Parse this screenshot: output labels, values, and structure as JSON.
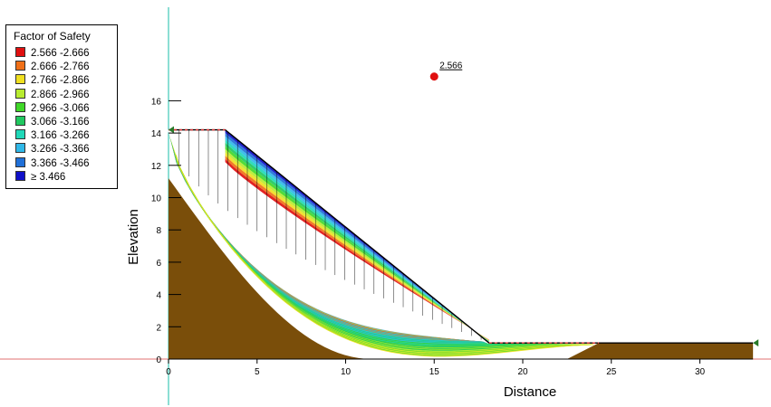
{
  "chart_data": {
    "type": "slope-stability",
    "xlabel": "Distance",
    "ylabel": "Elevation",
    "xlim": [
      0,
      33
    ],
    "ylim": [
      0,
      16
    ],
    "x_ticks": [
      "0",
      "5",
      "10",
      "15",
      "20",
      "25",
      "30"
    ],
    "y_ticks": [
      "0",
      "2",
      "4",
      "6",
      "8",
      "10",
      "12",
      "14",
      "16"
    ],
    "legend": {
      "title": "Factor of Safety",
      "entries": [
        {
          "label": "2.566 -2.666",
          "color": "#e01010"
        },
        {
          "label": "2.666 -2.766",
          "color": "#f07018"
        },
        {
          "label": "2.766 -2.866",
          "color": "#f0e020"
        },
        {
          "label": "2.866 -2.966",
          "color": "#b8ec30"
        },
        {
          "label": "2.966 -3.066",
          "color": "#40d828"
        },
        {
          "label": "3.066 -3.166",
          "color": "#20c860"
        },
        {
          "label": "3.166 -3.266",
          "color": "#20d8b8"
        },
        {
          "label": "3.266 -3.366",
          "color": "#30b8e8"
        },
        {
          "label": "3.366 -3.466",
          "color": "#2070d8"
        },
        {
          "label": "≥ 3.466",
          "color": "#1010c8"
        }
      ]
    },
    "critical_center": {
      "x": 15,
      "y": 17.5,
      "fos": "2.566"
    },
    "ground_surface": [
      [
        0,
        14.2
      ],
      [
        3.2,
        14.2
      ],
      [
        18.1,
        1
      ],
      [
        33,
        1
      ]
    ],
    "soil_color": "#7a4e0a"
  }
}
